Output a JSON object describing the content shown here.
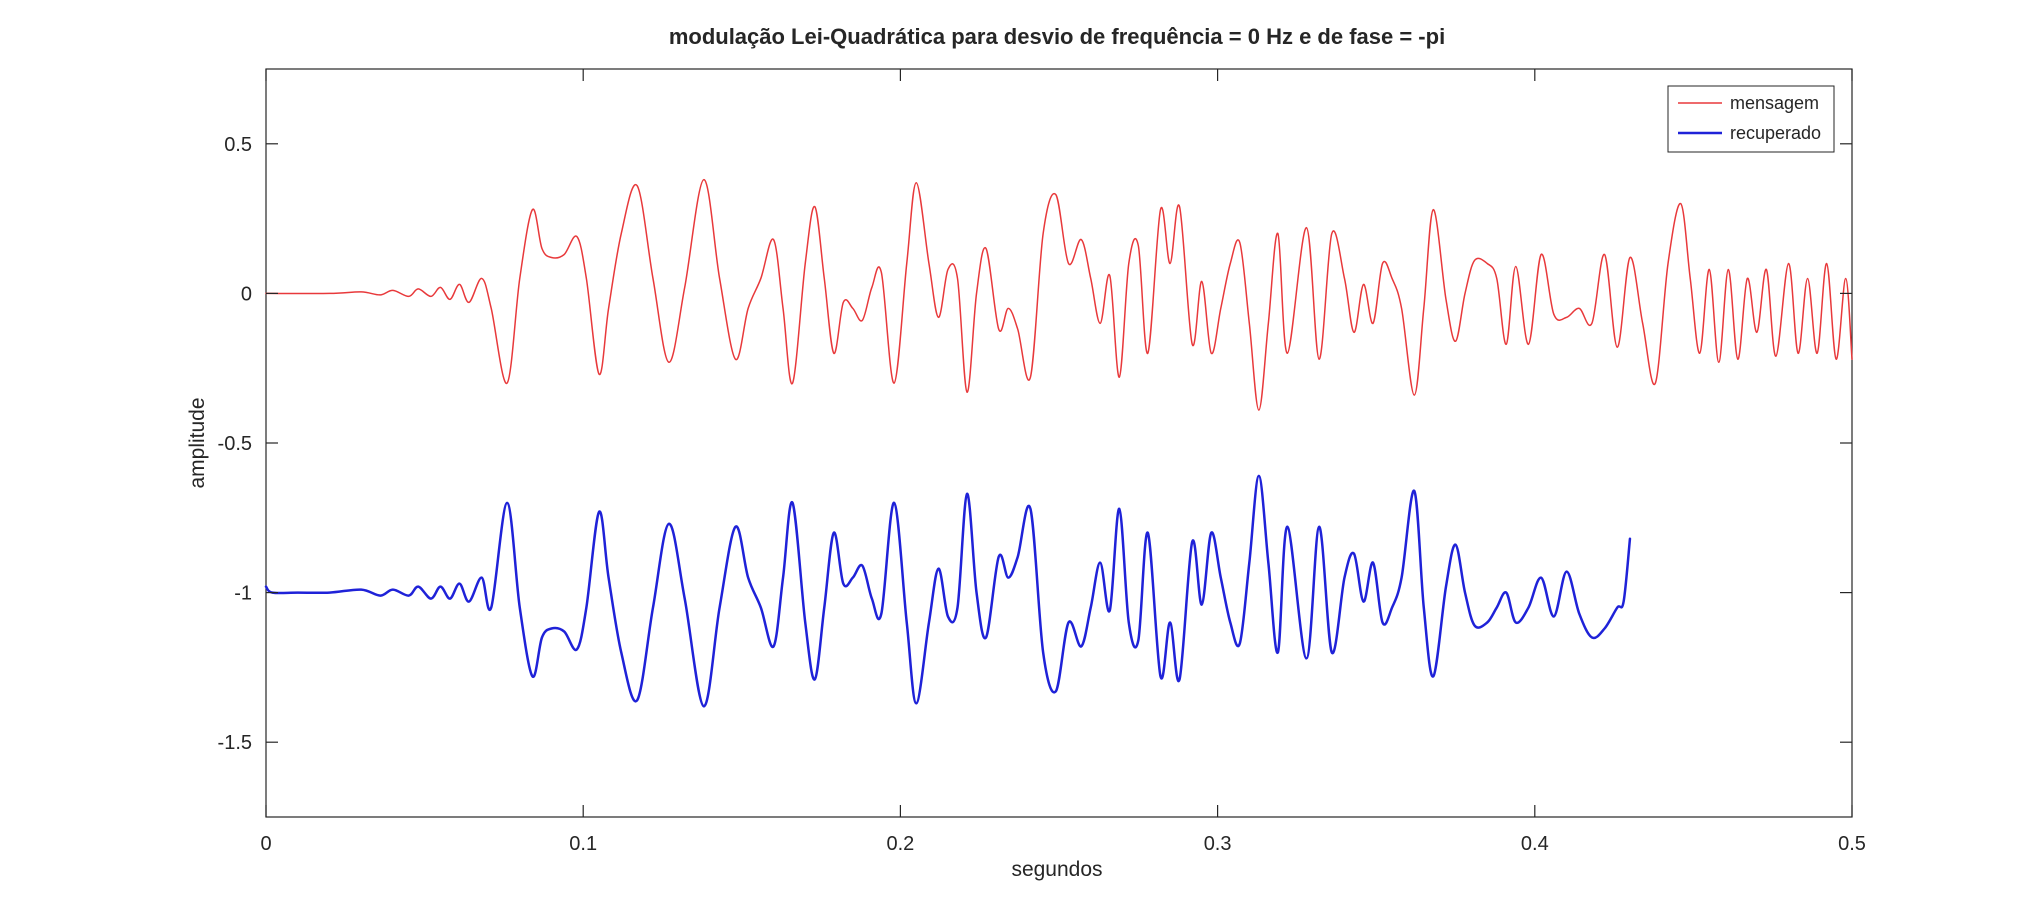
{
  "chart_data": {
    "type": "line",
    "title": "modulação Lei-Quadrática para desvio de frequência = 0 Hz e de fase = -pi",
    "xlabel": "segundos",
    "ylabel": "amplitude",
    "xlim": [
      0,
      0.5
    ],
    "ylim": [
      -1.75,
      0.75
    ],
    "xticks": [
      0,
      0.1,
      0.2,
      0.3,
      0.4,
      0.5
    ],
    "xtick_labels": [
      "0",
      "0.1",
      "0.2",
      "0.3",
      "0.4",
      "0.5"
    ],
    "yticks": [
      -1.5,
      -1,
      -0.5,
      0,
      0.5
    ],
    "ytick_labels": [
      "-1.5",
      "-1",
      "-0.5",
      "0",
      "0.5"
    ],
    "grid": false,
    "legend_position": "top-right",
    "series": [
      {
        "name": "mensagem",
        "color": "#e8393b",
        "x": [
          0,
          0.02,
          0.03,
          0.036,
          0.04,
          0.045,
          0.048,
          0.052,
          0.055,
          0.058,
          0.061,
          0.064,
          0.068,
          0.071,
          0.076,
          0.08,
          0.084,
          0.087,
          0.09,
          0.094,
          0.098,
          0.101,
          0.105,
          0.108,
          0.112,
          0.117,
          0.122,
          0.127,
          0.132,
          0.138,
          0.143,
          0.148,
          0.152,
          0.156,
          0.16,
          0.163,
          0.166,
          0.17,
          0.173,
          0.176,
          0.179,
          0.182,
          0.185,
          0.188,
          0.191,
          0.194,
          0.198,
          0.202,
          0.205,
          0.209,
          0.212,
          0.215,
          0.218,
          0.221,
          0.224,
          0.227,
          0.231,
          0.234,
          0.237,
          0.241,
          0.245,
          0.249,
          0.253,
          0.257,
          0.26,
          0.263,
          0.266,
          0.269,
          0.272,
          0.275,
          0.278,
          0.282,
          0.285,
          0.288,
          0.292,
          0.295,
          0.298,
          0.301,
          0.304,
          0.307,
          0.31,
          0.313,
          0.316,
          0.319,
          0.322,
          0.328,
          0.332,
          0.336,
          0.34,
          0.343,
          0.346,
          0.349,
          0.352,
          0.355,
          0.358,
          0.362,
          0.365,
          0.368,
          0.372,
          0.375,
          0.378,
          0.381,
          0.385,
          0.388,
          0.391,
          0.394,
          0.398,
          0.402,
          0.406,
          0.41,
          0.414,
          0.418,
          0.422,
          0.426,
          0.43,
          0.434,
          0.438,
          0.442,
          0.446,
          0.449,
          0.452,
          0.455,
          0.458,
          0.461,
          0.464,
          0.467,
          0.47,
          0.473,
          0.476,
          0.48,
          0.483,
          0.486,
          0.489,
          0.492,
          0.495,
          0.498,
          0.5
        ],
        "y": [
          0,
          0,
          0.005,
          -0.005,
          0.01,
          -0.01,
          0.015,
          -0.01,
          0.02,
          -0.02,
          0.03,
          -0.03,
          0.05,
          -0.05,
          -0.3,
          0.05,
          0.28,
          0.15,
          0.12,
          0.13,
          0.19,
          0.05,
          -0.27,
          -0.05,
          0.2,
          0.36,
          0.05,
          -0.23,
          0.02,
          0.38,
          0.05,
          -0.22,
          -0.05,
          0.05,
          0.18,
          -0.05,
          -0.3,
          0.1,
          0.29,
          0.05,
          -0.2,
          -0.03,
          -0.05,
          -0.09,
          0.02,
          0.07,
          -0.3,
          0.1,
          0.37,
          0.1,
          -0.08,
          0.08,
          0.05,
          -0.33,
          0,
          0.15,
          -0.12,
          -0.05,
          -0.12,
          -0.28,
          0.2,
          0.33,
          0.1,
          0.18,
          0.05,
          -0.1,
          0.06,
          -0.28,
          0.1,
          0.16,
          -0.2,
          0.28,
          0.1,
          0.29,
          -0.17,
          0.04,
          -0.2,
          -0.05,
          0.1,
          0.17,
          -0.1,
          -0.39,
          -0.1,
          0.2,
          -0.2,
          0.22,
          -0.22,
          0.2,
          0.05,
          -0.13,
          0.03,
          -0.1,
          0.1,
          0.05,
          -0.05,
          -0.34,
          -0.05,
          0.28,
          -0.02,
          -0.16,
          0,
          0.11,
          0.1,
          0.05,
          -0.17,
          0.09,
          -0.17,
          0.13,
          -0.07,
          -0.08,
          -0.05,
          -0.1,
          0.13,
          -0.18,
          0.12,
          -0.1,
          -0.3,
          0.1,
          0.3,
          0.05,
          -0.2,
          0.08,
          -0.23,
          0.08,
          -0.22,
          0.05,
          -0.13,
          0.08,
          -0.21,
          0.1,
          -0.2,
          0.05,
          -0.2,
          0.1,
          -0.22,
          0.05,
          -0.22
        ],
        "smooth": true
      },
      {
        "name": "recuperado",
        "color": "#1f22d8",
        "x": [
          0,
          0.002,
          0.01,
          0.02,
          0.03,
          0.036,
          0.04,
          0.045,
          0.048,
          0.052,
          0.055,
          0.058,
          0.061,
          0.064,
          0.068,
          0.071,
          0.076,
          0.08,
          0.084,
          0.087,
          0.09,
          0.094,
          0.098,
          0.101,
          0.105,
          0.108,
          0.112,
          0.117,
          0.122,
          0.127,
          0.132,
          0.138,
          0.143,
          0.148,
          0.152,
          0.156,
          0.16,
          0.163,
          0.166,
          0.17,
          0.173,
          0.176,
          0.179,
          0.182,
          0.185,
          0.188,
          0.191,
          0.194,
          0.198,
          0.202,
          0.205,
          0.209,
          0.212,
          0.215,
          0.218,
          0.221,
          0.224,
          0.227,
          0.231,
          0.234,
          0.237,
          0.241,
          0.245,
          0.249,
          0.253,
          0.257,
          0.26,
          0.263,
          0.266,
          0.269,
          0.272,
          0.275,
          0.278,
          0.282,
          0.285,
          0.288,
          0.292,
          0.295,
          0.298,
          0.301,
          0.304,
          0.307,
          0.31,
          0.313,
          0.316,
          0.319,
          0.322,
          0.328,
          0.332,
          0.336,
          0.34,
          0.343,
          0.346,
          0.349,
          0.352,
          0.355,
          0.358,
          0.362,
          0.365,
          0.368,
          0.372,
          0.375,
          0.378,
          0.381,
          0.385,
          0.388,
          0.391,
          0.394,
          0.398,
          0.402,
          0.406,
          0.41,
          0.414,
          0.418,
          0.422,
          0.426,
          0.428,
          0.43
        ],
        "y": [
          -0.98,
          -1,
          -1,
          -1,
          -0.99,
          -1.01,
          -0.99,
          -1.01,
          -0.98,
          -1.02,
          -0.98,
          -1.02,
          -0.97,
          -1.03,
          -0.95,
          -1.05,
          -0.7,
          -1.05,
          -1.28,
          -1.15,
          -1.12,
          -1.13,
          -1.19,
          -1.05,
          -0.73,
          -0.95,
          -1.2,
          -1.36,
          -1.05,
          -0.77,
          -1.02,
          -1.38,
          -1.05,
          -0.78,
          -0.95,
          -1.05,
          -1.18,
          -0.95,
          -0.7,
          -1.1,
          -1.29,
          -1.05,
          -0.8,
          -0.97,
          -0.95,
          -0.91,
          -1.02,
          -1.07,
          -0.7,
          -1.1,
          -1.37,
          -1.1,
          -0.92,
          -1.08,
          -1.05,
          -0.67,
          -1,
          -1.15,
          -0.88,
          -0.95,
          -0.88,
          -0.72,
          -1.2,
          -1.33,
          -1.1,
          -1.18,
          -1.05,
          -0.9,
          -1.06,
          -0.72,
          -1.1,
          -1.16,
          -0.8,
          -1.28,
          -1.1,
          -1.29,
          -0.83,
          -1.04,
          -0.8,
          -0.95,
          -1.1,
          -1.17,
          -0.9,
          -0.61,
          -0.9,
          -1.2,
          -0.78,
          -1.22,
          -0.78,
          -1.2,
          -0.95,
          -0.87,
          -1.03,
          -0.9,
          -1.1,
          -1.05,
          -0.95,
          -0.66,
          -1.05,
          -1.28,
          -0.98,
          -0.84,
          -1,
          -1.11,
          -1.1,
          -1.05,
          -1,
          -1.1,
          -1.05,
          -0.95,
          -1.08,
          -0.93,
          -1.07,
          -1.15,
          -1.12,
          -1.05,
          -1.03,
          -0.82
        ],
        "smooth": true
      }
    ]
  }
}
